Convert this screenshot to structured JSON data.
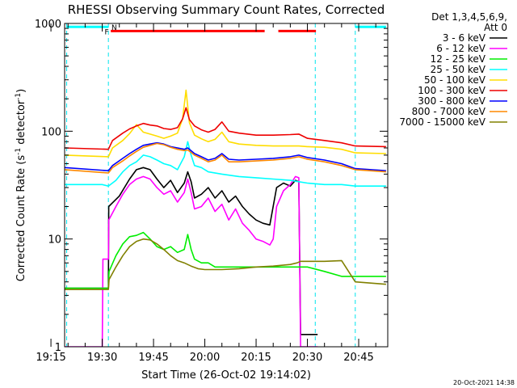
{
  "chart_data": {
    "type": "line",
    "title": "RHESSI Observing Summary Count Rates, Corrected",
    "xlabel": "Start Time (26-Oct-02 19:14:02)",
    "ylabel": "Corrected Count Rate (s",
    "ylabel_sup1": "-1",
    "ylabel_mid": " detector",
    "ylabel_sup2": "-1",
    "ylabel_end": ")",
    "yscale": "log",
    "ylim": [
      1,
      1000
    ],
    "y_ticks": [
      {
        "value": 1,
        "label": "1"
      },
      {
        "value": 10,
        "label": "10"
      },
      {
        "value": 100,
        "label": "100"
      },
      {
        "value": 1000,
        "label": "1000"
      }
    ],
    "xlim_minutes": [
      19.0,
      113.5
    ],
    "x_ticks": [
      {
        "value": 15,
        "label": "19:15"
      },
      {
        "value": 30,
        "label": "19:30"
      },
      {
        "value": 45,
        "label": "19:45"
      },
      {
        "value": 60,
        "label": "20:00"
      },
      {
        "value": 75,
        "label": "20:15"
      },
      {
        "value": 90,
        "label": "20:30"
      },
      {
        "value": 105,
        "label": "20:45"
      }
    ],
    "legend_header": [
      "Det 1,3,4,5,6,9,",
      "Att 0"
    ],
    "legend_position": "right",
    "series": [
      {
        "name": "3 - 6 keV",
        "color": "#000000",
        "points": [
          [
            19,
            3.5
          ],
          [
            31.8,
            3.5
          ],
          [
            31.9,
            20
          ],
          [
            35,
            25
          ],
          [
            38,
            36
          ],
          [
            40,
            44
          ],
          [
            42,
            46
          ],
          [
            44,
            44
          ],
          [
            46,
            36
          ],
          [
            48,
            30
          ],
          [
            50,
            35
          ],
          [
            52,
            27
          ],
          [
            54,
            33
          ],
          [
            55,
            42
          ],
          [
            56,
            34
          ],
          [
            57,
            24
          ],
          [
            59,
            26
          ],
          [
            61,
            30
          ],
          [
            63,
            24
          ],
          [
            65,
            28
          ],
          [
            67,
            22
          ],
          [
            69,
            25
          ],
          [
            71,
            20
          ],
          [
            73,
            17
          ],
          [
            75,
            15
          ],
          [
            77,
            14
          ],
          [
            79,
            13.5
          ],
          [
            81,
            30
          ],
          [
            83,
            33
          ],
          [
            85,
            31
          ],
          [
            86.5,
            35
          ],
          [
            87.5,
            34
          ],
          [
            88,
            1.3
          ],
          [
            93,
            1.3
          ]
        ]
      },
      {
        "name": "6 - 12 keV",
        "color": "#ff00ff",
        "points": [
          [
            19,
            1
          ],
          [
            30,
            1
          ],
          [
            30.2,
            6.5
          ],
          [
            31.8,
            6.5
          ],
          [
            31.9,
            15
          ],
          [
            34,
            20
          ],
          [
            36,
            26
          ],
          [
            38,
            32
          ],
          [
            40,
            36
          ],
          [
            42,
            38
          ],
          [
            44,
            36
          ],
          [
            46,
            30
          ],
          [
            48,
            26
          ],
          [
            50,
            28
          ],
          [
            52,
            22
          ],
          [
            54,
            27
          ],
          [
            55,
            36
          ],
          [
            56,
            27
          ],
          [
            57,
            19
          ],
          [
            59,
            20
          ],
          [
            61,
            24
          ],
          [
            63,
            18
          ],
          [
            65,
            21
          ],
          [
            67,
            15
          ],
          [
            69,
            19
          ],
          [
            71,
            14
          ],
          [
            73,
            12
          ],
          [
            75,
            10
          ],
          [
            77,
            9.5
          ],
          [
            79,
            8.8
          ],
          [
            80,
            10
          ],
          [
            81,
            20
          ],
          [
            83,
            28
          ],
          [
            85,
            32
          ],
          [
            86.5,
            38
          ],
          [
            87.5,
            37
          ],
          [
            88,
            1
          ],
          [
            93,
            1
          ]
        ]
      },
      {
        "name": "12 - 25 keV",
        "color": "#00ee00",
        "points": [
          [
            19,
            3.5
          ],
          [
            31.8,
            3.5
          ],
          [
            32,
            5
          ],
          [
            34,
            7
          ],
          [
            36,
            9
          ],
          [
            38,
            10.5
          ],
          [
            40,
            10.8
          ],
          [
            42,
            11.5
          ],
          [
            44,
            10
          ],
          [
            46,
            8.5
          ],
          [
            48,
            8
          ],
          [
            50,
            8.5
          ],
          [
            52,
            7.5
          ],
          [
            54,
            8
          ],
          [
            55,
            11
          ],
          [
            56,
            8
          ],
          [
            57,
            6.5
          ],
          [
            59,
            6
          ],
          [
            61,
            6
          ],
          [
            63,
            5.5
          ],
          [
            65,
            5.5
          ],
          [
            70,
            5.5
          ],
          [
            80,
            5.5
          ],
          [
            87,
            5.5
          ],
          [
            90,
            5.5
          ],
          [
            95,
            5
          ],
          [
            100,
            4.5
          ],
          [
            104,
            4.5
          ],
          [
            113,
            4.5
          ]
        ]
      },
      {
        "name": "25 - 50 keV",
        "color": "#00ffff",
        "points": [
          [
            19,
            32
          ],
          [
            30,
            32
          ],
          [
            31.8,
            31
          ],
          [
            34,
            35
          ],
          [
            36,
            42
          ],
          [
            38,
            48
          ],
          [
            40,
            52
          ],
          [
            42,
            60
          ],
          [
            44,
            58
          ],
          [
            46,
            54
          ],
          [
            48,
            50
          ],
          [
            50,
            48
          ],
          [
            52,
            44
          ],
          [
            54,
            58
          ],
          [
            55,
            80
          ],
          [
            56,
            60
          ],
          [
            57,
            48
          ],
          [
            59,
            46
          ],
          [
            61,
            42
          ],
          [
            65,
            40
          ],
          [
            70,
            38
          ],
          [
            75,
            37
          ],
          [
            80,
            36
          ],
          [
            85,
            35
          ],
          [
            87.5,
            34
          ],
          [
            90,
            33
          ],
          [
            95,
            32
          ],
          [
            100,
            32
          ],
          [
            104,
            31
          ],
          [
            113,
            31
          ]
        ]
      },
      {
        "name": "50 - 100 keV",
        "color": "#ffdd00",
        "points": [
          [
            19,
            60
          ],
          [
            31.8,
            58
          ],
          [
            33,
            70
          ],
          [
            36,
            82
          ],
          [
            38,
            95
          ],
          [
            40,
            115
          ],
          [
            42,
            98
          ],
          [
            44,
            94
          ],
          [
            46,
            90
          ],
          [
            48,
            86
          ],
          [
            50,
            90
          ],
          [
            52,
            96
          ],
          [
            53.5,
            130
          ],
          [
            54.5,
            240
          ],
          [
            55.5,
            120
          ],
          [
            57,
            92
          ],
          [
            59,
            85
          ],
          [
            61,
            80
          ],
          [
            63,
            84
          ],
          [
            65,
            98
          ],
          [
            67,
            80
          ],
          [
            70,
            76
          ],
          [
            75,
            74
          ],
          [
            80,
            73
          ],
          [
            85,
            73
          ],
          [
            87.5,
            73
          ],
          [
            90,
            72
          ],
          [
            95,
            71
          ],
          [
            100,
            68
          ],
          [
            104,
            63
          ],
          [
            113,
            62
          ]
        ]
      },
      {
        "name": "100 - 300 keV",
        "color": "#ee0000",
        "points": [
          [
            19,
            70
          ],
          [
            31.8,
            68
          ],
          [
            33,
            82
          ],
          [
            36,
            96
          ],
          [
            38,
            105
          ],
          [
            40,
            112
          ],
          [
            42,
            118
          ],
          [
            44,
            114
          ],
          [
            46,
            112
          ],
          [
            48,
            106
          ],
          [
            50,
            104
          ],
          [
            52,
            108
          ],
          [
            53.5,
            130
          ],
          [
            54.5,
            165
          ],
          [
            55.5,
            128
          ],
          [
            57,
            112
          ],
          [
            59,
            103
          ],
          [
            61,
            98
          ],
          [
            63,
            104
          ],
          [
            65,
            122
          ],
          [
            67,
            100
          ],
          [
            70,
            96
          ],
          [
            75,
            92
          ],
          [
            80,
            92
          ],
          [
            85,
            93
          ],
          [
            87.5,
            94
          ],
          [
            90,
            86
          ],
          [
            95,
            82
          ],
          [
            100,
            78
          ],
          [
            104,
            73
          ],
          [
            113,
            72
          ]
        ]
      },
      {
        "name": "300 - 800 keV",
        "color": "#0000ff",
        "points": [
          [
            19,
            46
          ],
          [
            31.8,
            43
          ],
          [
            33,
            48
          ],
          [
            36,
            56
          ],
          [
            38,
            62
          ],
          [
            40,
            68
          ],
          [
            42,
            74
          ],
          [
            44,
            76
          ],
          [
            46,
            78
          ],
          [
            48,
            76
          ],
          [
            50,
            72
          ],
          [
            52,
            70
          ],
          [
            54,
            68
          ],
          [
            55,
            70
          ],
          [
            57,
            62
          ],
          [
            59,
            58
          ],
          [
            61,
            54
          ],
          [
            63,
            56
          ],
          [
            65,
            62
          ],
          [
            67,
            55
          ],
          [
            70,
            54
          ],
          [
            75,
            55
          ],
          [
            80,
            56
          ],
          [
            85,
            58
          ],
          [
            87.5,
            60
          ],
          [
            90,
            57
          ],
          [
            95,
            54
          ],
          [
            100,
            50
          ],
          [
            104,
            45
          ],
          [
            113,
            43
          ]
        ]
      },
      {
        "name": "800 - 7000 keV",
        "color": "#ff8800",
        "points": [
          [
            19,
            44
          ],
          [
            31.8,
            41
          ],
          [
            33,
            46
          ],
          [
            36,
            53
          ],
          [
            38,
            59
          ],
          [
            40,
            65
          ],
          [
            42,
            71
          ],
          [
            44,
            74
          ],
          [
            46,
            77
          ],
          [
            48,
            75
          ],
          [
            50,
            71
          ],
          [
            52,
            68
          ],
          [
            54,
            66
          ],
          [
            55,
            67
          ],
          [
            57,
            60
          ],
          [
            59,
            56
          ],
          [
            61,
            52
          ],
          [
            63,
            54
          ],
          [
            65,
            60
          ],
          [
            67,
            52
          ],
          [
            70,
            52
          ],
          [
            75,
            53
          ],
          [
            80,
            54
          ],
          [
            85,
            56
          ],
          [
            87.5,
            58
          ],
          [
            90,
            55
          ],
          [
            95,
            52
          ],
          [
            100,
            48
          ],
          [
            104,
            44
          ],
          [
            113,
            42
          ]
        ]
      },
      {
        "name": "7000 - 15000 keV",
        "color": "#808000",
        "points": [
          [
            19,
            3.4
          ],
          [
            31.8,
            3.4
          ],
          [
            32,
            4.2
          ],
          [
            34,
            5.5
          ],
          [
            36,
            7
          ],
          [
            38,
            8.5
          ],
          [
            40,
            9.5
          ],
          [
            42,
            10
          ],
          [
            44,
            9.8
          ],
          [
            46,
            9
          ],
          [
            48,
            8
          ],
          [
            50,
            7
          ],
          [
            52,
            6.3
          ],
          [
            54,
            6
          ],
          [
            56,
            5.6
          ],
          [
            58,
            5.3
          ],
          [
            60,
            5.2
          ],
          [
            65,
            5.2
          ],
          [
            70,
            5.3
          ],
          [
            75,
            5.5
          ],
          [
            80,
            5.6
          ],
          [
            85,
            5.8
          ],
          [
            87,
            6
          ],
          [
            88,
            6.2
          ],
          [
            90,
            6.2
          ],
          [
            95,
            6.2
          ],
          [
            100,
            6.3
          ],
          [
            104,
            4
          ],
          [
            113,
            3.8
          ]
        ]
      }
    ],
    "annotations": [
      {
        "label": "F",
        "color": "#ff0000",
        "x": 31.3,
        "y": 850,
        "intervals": [
          [
            32.5,
            77.5
          ],
          [
            81.5,
            92.5
          ]
        ]
      },
      {
        "label": "N",
        "color": "#00ffff",
        "x": 33.5,
        "y": 930,
        "intervals": [
          [
            19.5,
            31.8
          ],
          [
            104.0,
            113.0
          ]
        ]
      }
    ],
    "vertical_markers": [
      19.6,
      31.8,
      92.3,
      104.0
    ],
    "footer_stamp": "20-Oct-2021 14:38"
  }
}
